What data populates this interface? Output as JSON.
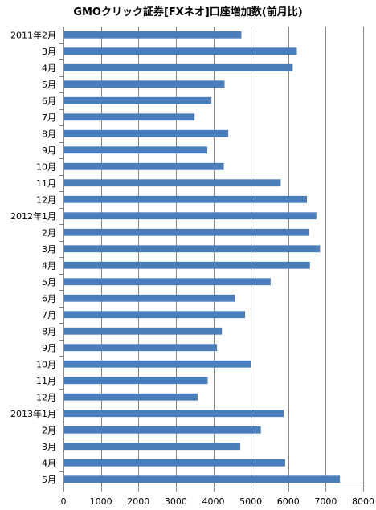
{
  "chart_data": {
    "type": "bar",
    "orientation": "horizontal",
    "title": "GMOクリック証券[FXネオ]口座増加数(前月比)",
    "categories": [
      "2011年2月",
      "3月",
      "4月",
      "5月",
      "6月",
      "7月",
      "8月",
      "9月",
      "10月",
      "11月",
      "12月",
      "2012年1月",
      "2月",
      "3月",
      "4月",
      "5月",
      "6月",
      "7月",
      "8月",
      "9月",
      "10月",
      "11月",
      "12月",
      "2013年1月",
      "2月",
      "3月",
      "4月",
      "5月"
    ],
    "values": [
      4750,
      6230,
      6120,
      4300,
      3950,
      3500,
      4400,
      3840,
      4280,
      5800,
      6500,
      6750,
      6550,
      6850,
      6580,
      5530,
      4580,
      4850,
      4230,
      4100,
      5000,
      3850,
      3580,
      5880,
      5270,
      4720,
      5920,
      7380
    ],
    "xlim": [
      0,
      8000
    ],
    "xticks": [
      0,
      1000,
      2000,
      3000,
      4000,
      5000,
      6000,
      7000,
      8000
    ],
    "grid": true,
    "legend": "none",
    "bar_color": "#4a7ebb",
    "grid_color": "#868686",
    "axis_color": "#868686"
  }
}
